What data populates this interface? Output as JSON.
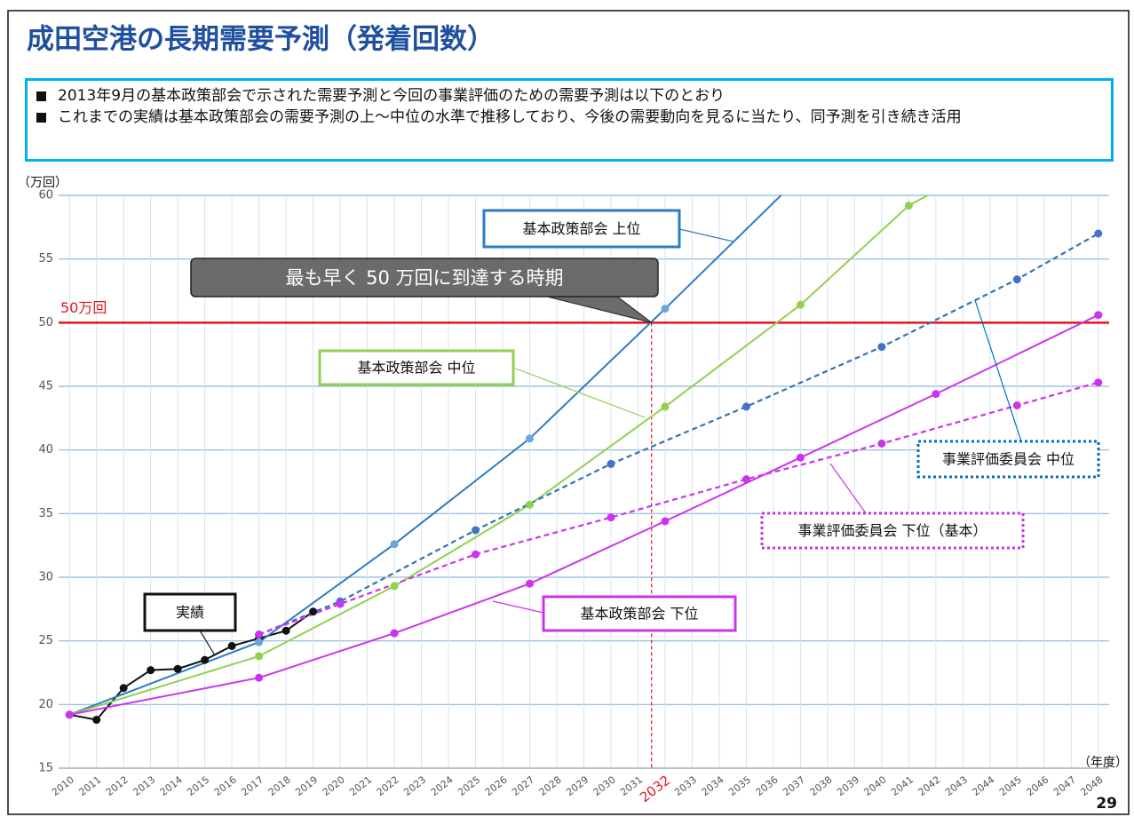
{
  "header": {
    "title": "成田空港の長期需要予測（発着回数）",
    "bullets": [
      "2013年9月の基本政策部会で示された需要予測と今回の事業評価のための需要予測は以下のとおり",
      "これまでの実績は基本政策部会の需要予測の上～中位の水準で推移しており、今後の需要動向を見るに当たり、同予測を引き続き活用"
    ],
    "page_number": "29"
  },
  "chart_data": {
    "type": "line",
    "y_label": "（万回）",
    "x_label": "（年度）",
    "xlim": [
      2009.6,
      2048.4
    ],
    "ylim": [
      15,
      60
    ],
    "xticks": [
      2010,
      2011,
      2012,
      2013,
      2014,
      2015,
      2016,
      2017,
      2018,
      2019,
      2020,
      2021,
      2022,
      2023,
      2024,
      2025,
      2026,
      2027,
      2028,
      2029,
      2030,
      2031,
      2032,
      2033,
      2034,
      2035,
      2036,
      2037,
      2038,
      2039,
      2040,
      2041,
      2042,
      2043,
      2044,
      2045,
      2046,
      2047,
      2048
    ],
    "yticks": [
      15,
      20,
      25,
      30,
      35,
      40,
      45,
      50,
      55,
      60
    ],
    "grid": true,
    "hline": {
      "value": 50,
      "label": "50万回",
      "color": "#e3141d"
    },
    "reference_line": {
      "x": 2031.5,
      "color": "#e3141d",
      "tick": 2032
    },
    "annotation": "最も早く 50 万回に到達する時期",
    "series": [
      {
        "name": "実績",
        "color": "#111111",
        "marker": "#111111",
        "dash": false,
        "x": [
          2010,
          2011,
          2012,
          2013,
          2014,
          2015,
          2016,
          2017,
          2018,
          2019
        ],
        "values": [
          19.2,
          18.8,
          21.3,
          22.7,
          22.8,
          23.5,
          24.6,
          25.2,
          25.8,
          27.3
        ]
      },
      {
        "name": "基本政策部会 上位",
        "color": "#2e7cc4",
        "marker": "#6aa6dc",
        "dash": false,
        "x": [
          2010,
          2017,
          2022,
          2027,
          2032,
          2037
        ],
        "values": [
          19.2,
          24.9,
          32.6,
          40.9,
          51.1,
          61.5
        ]
      },
      {
        "name": "基本政策部会 中位",
        "color": "#92d050",
        "marker": "#92d050",
        "dash": false,
        "x": [
          2010,
          2017,
          2022,
          2027,
          2032,
          2037,
          2041,
          2043
        ],
        "values": [
          19.2,
          23.8,
          29.3,
          35.7,
          43.4,
          51.4,
          59.2,
          61.5
        ]
      },
      {
        "name": "基本政策部会 下位",
        "color": "#cc33ee",
        "marker": "#cc33ee",
        "dash": false,
        "x": [
          2010,
          2017,
          2022,
          2027,
          2032,
          2037,
          2042,
          2048
        ],
        "values": [
          19.2,
          22.1,
          25.6,
          29.5,
          34.4,
          39.4,
          44.4,
          50.6
        ]
      },
      {
        "name": "事業評価委員会 中位",
        "color": "#2e75b6",
        "marker": "#4472c4",
        "dash": true,
        "x": [
          2017,
          2020,
          2025,
          2030,
          2035,
          2040,
          2045,
          2048
        ],
        "values": [
          25.5,
          28.1,
          33.7,
          38.9,
          43.4,
          48.1,
          53.4,
          57.0
        ]
      },
      {
        "name": "事業評価委員会 下位（基本）",
        "color": "#cc33ee",
        "marker": "#cc33ee",
        "dash": true,
        "x": [
          2017,
          2020,
          2025,
          2030,
          2035,
          2040,
          2045,
          2048
        ],
        "values": [
          25.5,
          27.9,
          31.8,
          34.7,
          37.7,
          40.5,
          43.5,
          45.3
        ]
      }
    ]
  }
}
